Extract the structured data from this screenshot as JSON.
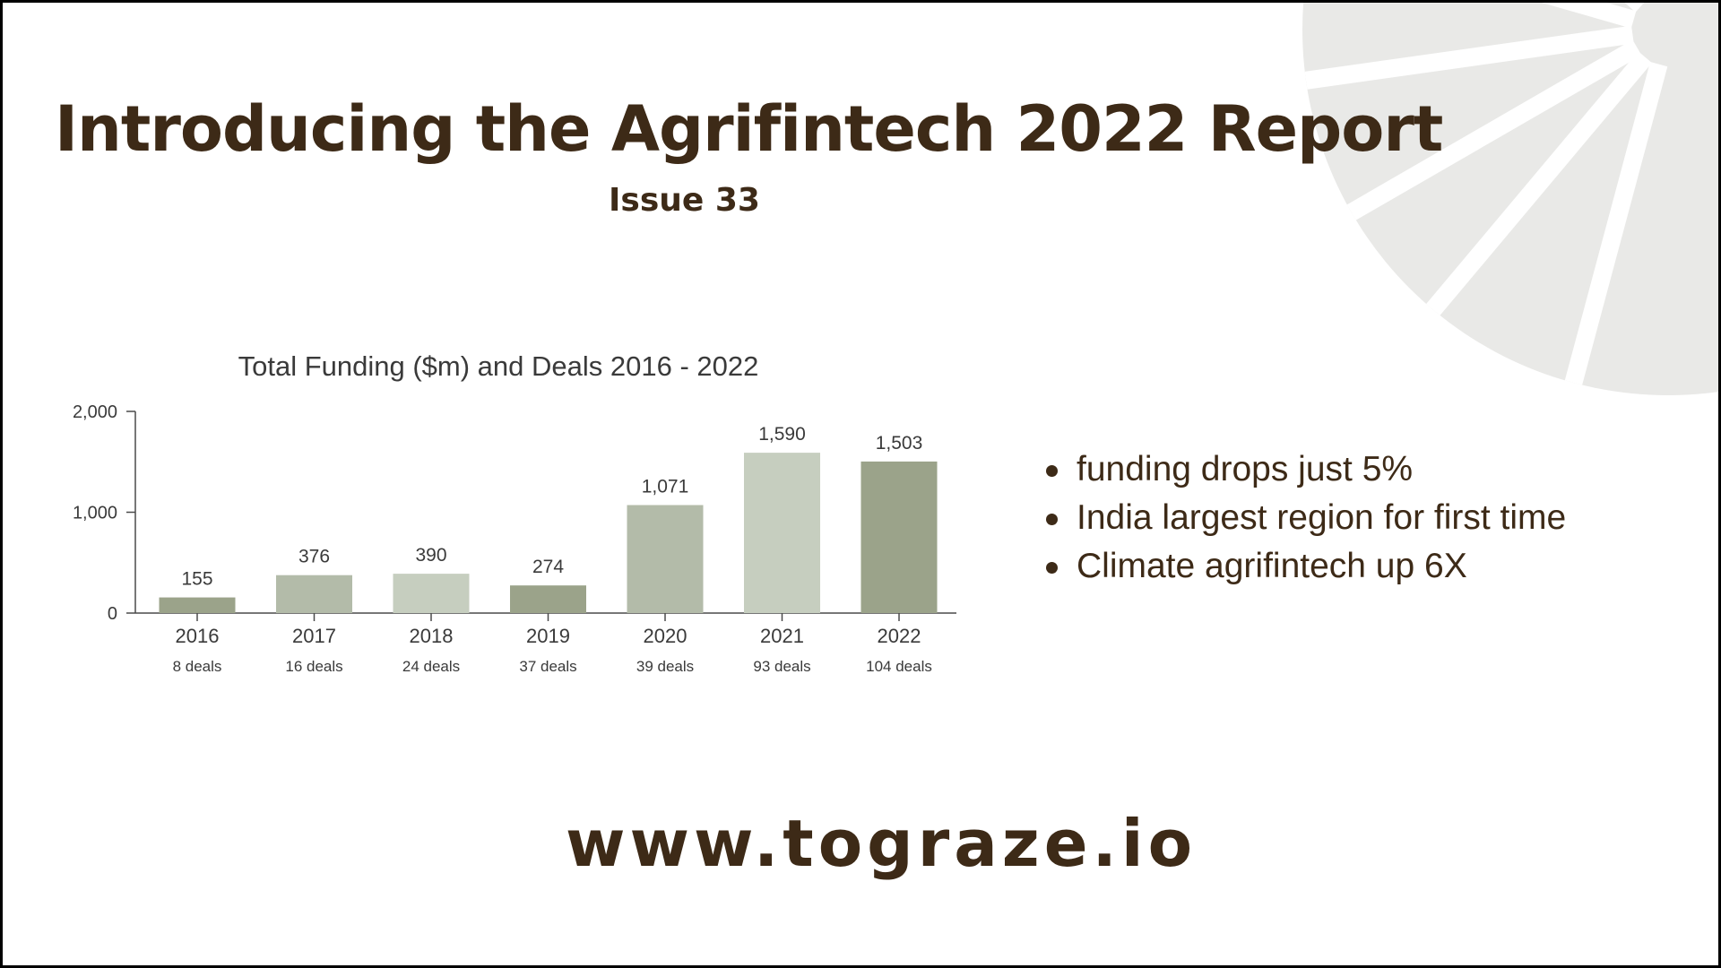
{
  "header": {
    "title": "Introducing the Agrifintech 2022 Report",
    "subtitle": "Issue 33"
  },
  "chart_data": {
    "type": "bar",
    "title": "Total Funding ($m) and Deals 2016 - 2022",
    "categories": [
      "2016",
      "2017",
      "2018",
      "2019",
      "2020",
      "2021",
      "2022"
    ],
    "sublabels": [
      "8 deals",
      "16 deals",
      "24 deals",
      "37 deals",
      "39 deals",
      "93 deals",
      "104 deals"
    ],
    "values": [
      155,
      376,
      390,
      274,
      1071,
      1590,
      1503
    ],
    "value_labels": [
      "155",
      "376",
      "390",
      "274",
      "1,071",
      "1,590",
      "1,503"
    ],
    "yticks": [
      0,
      1000,
      2000
    ],
    "ytick_labels": [
      "0",
      "1,000",
      "2,000"
    ],
    "ylim": [
      0,
      2000
    ],
    "grid": false,
    "legend": "none",
    "bar_colors": [
      "#9ba38a",
      "#b3bba9",
      "#c6cebf",
      "#9ba38a",
      "#b3bba9",
      "#c6cebf",
      "#9ba38a"
    ]
  },
  "bullets": [
    "funding drops just 5%",
    "India largest region for first time",
    "Climate agrifintech up 6X"
  ],
  "footer": {
    "website": "www.tograze.io"
  },
  "colors": {
    "text": "#3d2a17",
    "decor": "#e9e9e7",
    "axis": "#4a4a4a"
  }
}
